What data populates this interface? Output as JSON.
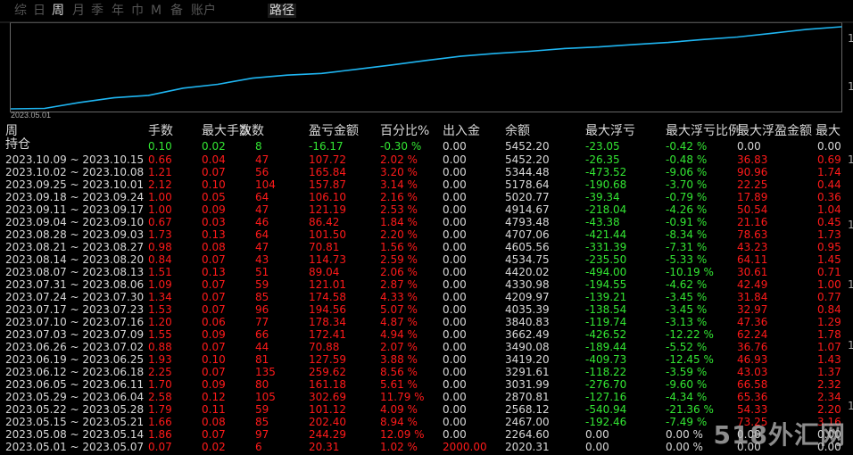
{
  "toolbar": {
    "tabs": [
      "综",
      "日",
      "周",
      "月",
      "季",
      "年",
      "巾",
      "M",
      "备",
      "账户"
    ],
    "active_tab": "周",
    "path_label": "路径"
  },
  "chart_data": {
    "type": "line",
    "x": [
      "2023.05.01",
      "2023.05.08",
      "2023.05.15",
      "2023.05.22",
      "2023.05.29",
      "2023.06.05",
      "2023.06.12",
      "2023.06.19",
      "2023.06.26",
      "2023.07.03",
      "2023.07.10",
      "2023.07.17",
      "2023.07.24",
      "2023.07.31",
      "2023.08.07",
      "2023.08.14",
      "2023.08.21",
      "2023.08.28",
      "2023.09.04",
      "2023.09.11",
      "2023.09.18",
      "2023.09.25",
      "2023.10.02",
      "2023.10.09"
    ],
    "series": [
      {
        "values": [
          2020.31,
          2264.6,
          2467.0,
          2568.12,
          2870.81,
          3031.99,
          3291.61,
          3419.2,
          3490.08,
          3662.49,
          3840.83,
          4035.39,
          4209.97,
          4330.98,
          4420.02,
          4534.75,
          4605.56,
          4707.06,
          4793.48,
          4914.67,
          5020.77,
          5178.64,
          5344.48,
          5452.2
        ]
      }
    ],
    "xtick_label": "2023.05.01",
    "line_color": "#1fb6f2",
    "grid": false
  },
  "table": {
    "period_label": "周",
    "headers": [
      "手数",
      "最大手数",
      "次数",
      "盈亏金额",
      "百分比%",
      "出入金",
      "余额",
      "最大浮亏",
      "最大浮亏比例",
      "最大浮盈金额",
      "最大"
    ],
    "holding": {
      "label": "持仓",
      "values": [
        "0.10",
        "0.02",
        "8",
        "-16.17",
        "-0.30 %",
        "0.00",
        "5452.20",
        "-23.05",
        "-0.42 %",
        "0.00",
        "0.00"
      ]
    },
    "rows": [
      {
        "period": "2023.10.09 ~ 2023.10.15",
        "values": [
          "0.66",
          "0.04",
          "47",
          "107.72",
          "2.02 %",
          "0.00",
          "5452.20",
          "-26.35",
          "-0.48 %",
          "36.83",
          "0.69"
        ]
      },
      {
        "period": "2023.10.02 ~ 2023.10.08",
        "values": [
          "1.21",
          "0.07",
          "56",
          "165.84",
          "3.20 %",
          "0.00",
          "5344.48",
          "-473.52",
          "-9.06 %",
          "90.96",
          "1.74"
        ]
      },
      {
        "period": "2023.09.25 ~ 2023.10.01",
        "values": [
          "2.12",
          "0.10",
          "104",
          "157.87",
          "3.14 %",
          "0.00",
          "5178.64",
          "-190.68",
          "-3.70 %",
          "22.25",
          "0.44"
        ]
      },
      {
        "period": "2023.09.18 ~ 2023.09.24",
        "values": [
          "1.00",
          "0.05",
          "64",
          "106.10",
          "2.16 %",
          "0.00",
          "5020.77",
          "-39.34",
          "-0.79 %",
          "17.89",
          "0.36"
        ]
      },
      {
        "period": "2023.09.11 ~ 2023.09.17",
        "values": [
          "1.00",
          "0.09",
          "47",
          "121.19",
          "2.53 %",
          "0.00",
          "4914.67",
          "-218.04",
          "-4.26 %",
          "50.54",
          "1.04"
        ]
      },
      {
        "period": "2023.09.04 ~ 2023.09.10",
        "values": [
          "0.67",
          "0.03",
          "46",
          "86.42",
          "1.84 %",
          "0.00",
          "4793.48",
          "-43.38",
          "-0.91 %",
          "21.16",
          "0.45"
        ]
      },
      {
        "period": "2023.08.28 ~ 2023.09.03",
        "values": [
          "1.73",
          "0.13",
          "64",
          "101.50",
          "2.20 %",
          "0.00",
          "4707.06",
          "-421.44",
          "-8.34 %",
          "78.63",
          "1.73"
        ]
      },
      {
        "period": "2023.08.21 ~ 2023.08.27",
        "values": [
          "0.98",
          "0.08",
          "47",
          "70.81",
          "1.56 %",
          "0.00",
          "4605.56",
          "-331.39",
          "-7.31 %",
          "43.23",
          "0.95"
        ]
      },
      {
        "period": "2023.08.14 ~ 2023.08.20",
        "values": [
          "0.84",
          "0.07",
          "43",
          "114.73",
          "2.59 %",
          "0.00",
          "4534.75",
          "-235.50",
          "-5.33 %",
          "64.11",
          "1.45"
        ]
      },
      {
        "period": "2023.08.07 ~ 2023.08.13",
        "values": [
          "1.51",
          "0.13",
          "51",
          "89.04",
          "2.06 %",
          "0.00",
          "4420.02",
          "-494.00",
          "-10.19 %",
          "30.61",
          "0.71"
        ]
      },
      {
        "period": "2023.07.31 ~ 2023.08.06",
        "values": [
          "1.09",
          "0.07",
          "59",
          "121.01",
          "2.87 %",
          "0.00",
          "4330.98",
          "-194.55",
          "-4.62 %",
          "42.49",
          "1.00"
        ]
      },
      {
        "period": "2023.07.24 ~ 2023.07.30",
        "values": [
          "1.34",
          "0.07",
          "85",
          "174.58",
          "4.33 %",
          "0.00",
          "4209.97",
          "-139.21",
          "-3.45 %",
          "31.84",
          "0.77"
        ]
      },
      {
        "period": "2023.07.17 ~ 2023.07.23",
        "values": [
          "1.53",
          "0.07",
          "96",
          "194.56",
          "5.07 %",
          "0.00",
          "4035.39",
          "-138.54",
          "-3.45 %",
          "32.97",
          "0.84"
        ]
      },
      {
        "period": "2023.07.10 ~ 2023.07.16",
        "values": [
          "1.20",
          "0.06",
          "77",
          "178.34",
          "4.87 %",
          "0.00",
          "3840.83",
          "-119.74",
          "-3.13 %",
          "47.36",
          "1.29"
        ]
      },
      {
        "period": "2023.07.03 ~ 2023.07.09",
        "values": [
          "1.55",
          "0.09",
          "66",
          "172.41",
          "4.94 %",
          "0.00",
          "3662.49",
          "-426.52",
          "-12.22 %",
          "62.24",
          "1.78"
        ]
      },
      {
        "period": "2023.06.26 ~ 2023.07.02",
        "values": [
          "0.88",
          "0.07",
          "44",
          "70.88",
          "2.07 %",
          "0.00",
          "3490.08",
          "-189.44",
          "-5.52 %",
          "36.76",
          "1.07"
        ]
      },
      {
        "period": "2023.06.19 ~ 2023.06.25",
        "values": [
          "1.93",
          "0.10",
          "81",
          "127.59",
          "3.88 %",
          "0.00",
          "3419.20",
          "-409.73",
          "-12.45 %",
          "46.93",
          "1.43"
        ]
      },
      {
        "period": "2023.06.12 ~ 2023.06.18",
        "values": [
          "2.25",
          "0.07",
          "135",
          "259.62",
          "8.56 %",
          "0.00",
          "3291.61",
          "-118.22",
          "-3.59 %",
          "43.03",
          "1.37"
        ]
      },
      {
        "period": "2023.06.05 ~ 2023.06.11",
        "values": [
          "1.70",
          "0.09",
          "80",
          "161.18",
          "5.61 %",
          "0.00",
          "3031.99",
          "-276.70",
          "-9.60 %",
          "66.58",
          "2.32"
        ]
      },
      {
        "period": "2023.05.29 ~ 2023.06.04",
        "values": [
          "2.58",
          "0.12",
          "105",
          "302.69",
          "11.79 %",
          "0.00",
          "2870.81",
          "-127.16",
          "-4.34 %",
          "65.36",
          "2.34"
        ]
      },
      {
        "period": "2023.05.22 ~ 2023.05.28",
        "values": [
          "1.79",
          "0.11",
          "59",
          "101.12",
          "4.09 %",
          "0.00",
          "2568.12",
          "-540.94",
          "-21.36 %",
          "54.33",
          "2.20"
        ]
      },
      {
        "period": "2023.05.15 ~ 2023.05.21",
        "values": [
          "1.66",
          "0.08",
          "85",
          "202.40",
          "8.94 %",
          "0.00",
          "2467.00",
          "-192.46",
          "-7.49 %",
          "73.25",
          "3.16"
        ]
      },
      {
        "period": "2023.05.08 ~ 2023.05.14",
        "values": [
          "1.86",
          "0.07",
          "97",
          "244.29",
          "12.09 %",
          "0.00",
          "2264.60",
          "0.00",
          "0.00 %",
          "0.00",
          "0.00"
        ]
      },
      {
        "period": "2023.05.01 ~ 2023.05.07",
        "values": [
          "0.07",
          "0.02",
          "6",
          "20.31",
          "1.02 %",
          "2000.00",
          "2020.31",
          "0.00",
          "0.00 %",
          "0.00",
          "0.00"
        ]
      }
    ]
  },
  "colors": {
    "positive": "#ff1a1a",
    "negative": "#33e633",
    "neutral": "#d8d8d8",
    "line": "#1fb6f2"
  },
  "watermark": "518外汇网"
}
